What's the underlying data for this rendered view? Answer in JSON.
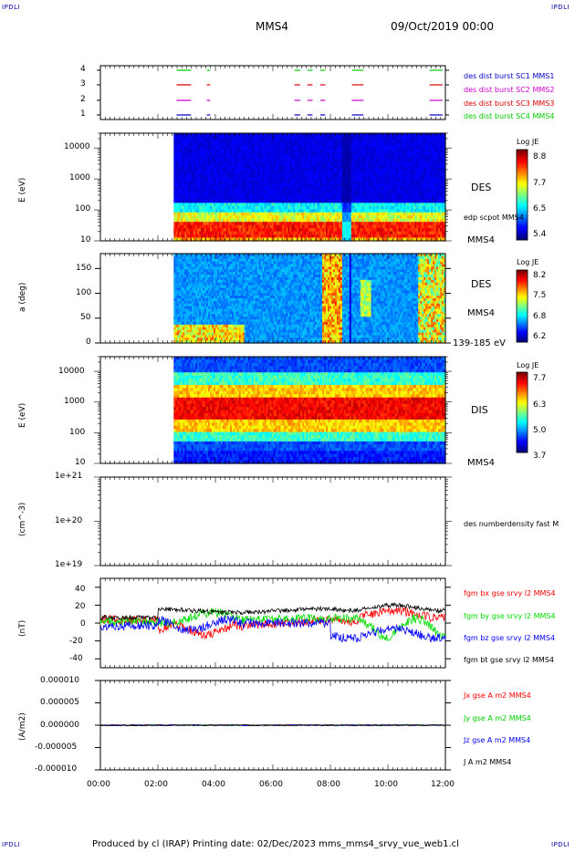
{
  "header": {
    "corner_tl": "IPDLI",
    "corner_tr": "IPDLI",
    "corner_bl": "IPDLI",
    "corner_br": "IPDLI",
    "spacecraft": "MMS4",
    "datetime": "09/Oct/2019 00:00"
  },
  "footer": {
    "text": "Produced by cl (IRAP)   Printing date: 02/Dec/2023   mms_mms4_srvy_vue_web1.cl"
  },
  "colors": {
    "mms1": "#0000cc",
    "mms2": "#cc00cc",
    "mms3": "#dd0000",
    "mms4": "#00cc00",
    "bx": "#ff0000",
    "by": "#00dd00",
    "bz": "#0000ff",
    "bt": "#000000"
  },
  "chart_data": [
    {
      "type": "timeline",
      "id": "burst",
      "x_unit": "hours",
      "xlim": [
        0,
        12
      ],
      "ytick_labels": [
        "1",
        "2",
        "3",
        "4"
      ],
      "legend": [
        {
          "label": "des dist burst SC1 MMS1",
          "color": "#0000cc"
        },
        {
          "label": "des dist burst SC2 MMS2",
          "color": "#cc00cc"
        },
        {
          "label": "des dist burst SC3 MMS3",
          "color": "#dd0000"
        },
        {
          "label": "des dist burst SC4 MMS4",
          "color": "#00cc00"
        }
      ],
      "intervals": [
        [
          2.65,
          3.15
        ],
        [
          3.7,
          3.82
        ],
        [
          6.75,
          6.95
        ],
        [
          7.2,
          7.38
        ],
        [
          7.65,
          7.82
        ],
        [
          8.75,
          9.15
        ],
        [
          11.45,
          11.9
        ]
      ]
    },
    {
      "type": "heatmap",
      "id": "des_energy",
      "ylabel": "E (eV)",
      "yscale": "log",
      "ylim": [
        10,
        30000
      ],
      "ytick_labels": [
        "10",
        "100",
        "1000",
        "10000"
      ],
      "data_start_hour": 2.55,
      "right_labels": [
        "DES",
        "edp scpot MMS4",
        "MMS4"
      ],
      "colorbar": {
        "title": "Log JE",
        "ticks": [
          "8.8",
          "7.7",
          "6.5",
          "5.4"
        ]
      }
    },
    {
      "type": "heatmap",
      "id": "des_pitch",
      "ylabel": "a (deg)",
      "ylim": [
        0,
        180
      ],
      "ytick_labels": [
        "0",
        "50",
        "100",
        "150"
      ],
      "data_start_hour": 2.55,
      "right_labels": [
        "DES",
        "MMS4",
        "139-185 eV"
      ],
      "colorbar": {
        "title": "Log JE",
        "ticks": [
          "8.2",
          "7.5",
          "6.8",
          "6.2"
        ]
      }
    },
    {
      "type": "heatmap",
      "id": "dis_energy",
      "ylabel": "E (eV)",
      "yscale": "log",
      "ylim": [
        10,
        30000
      ],
      "ytick_labels": [
        "10",
        "100",
        "1000",
        "10000"
      ],
      "data_start_hour": 2.55,
      "right_labels": [
        "DIS",
        "MMS4"
      ],
      "colorbar": {
        "title": "Log JE",
        "ticks": [
          "7.7",
          "6.3",
          "5.0",
          "3.7"
        ]
      }
    },
    {
      "type": "line",
      "id": "density",
      "ylabel": "(cm^-3)",
      "yscale": "log",
      "ylim": [
        1e+19,
        1e+21
      ],
      "ytick_labels": [
        "1e+19",
        "1e+20",
        "1e+21"
      ],
      "right_labels": [
        "des numberdensity fast M"
      ],
      "series": []
    },
    {
      "type": "line",
      "id": "bfield",
      "ylabel": "(nT)",
      "ylim": [
        -50,
        50
      ],
      "ytick_labels": [
        "-40",
        "-20",
        "0",
        "20",
        "40"
      ],
      "series": [
        {
          "name": "fgm bx gse srvy l2 MMS4",
          "color": "#ff0000"
        },
        {
          "name": "fgm by gse srvy l2 MMS4",
          "color": "#00dd00"
        },
        {
          "name": "fgm bz gse srvy l2 MMS4",
          "color": "#0000ff"
        },
        {
          "name": "fgm bt gse srvy l2 MMS4",
          "color": "#000000"
        }
      ]
    },
    {
      "type": "line",
      "id": "current",
      "ylabel": "(A/m2)",
      "ylim": [
        -1e-05,
        1e-05
      ],
      "ytick_labels": [
        "-0.000010",
        "-0.000005",
        "0.000000",
        "0.000005",
        "0.000010"
      ],
      "series": [
        {
          "name": "Jx gse A m2 MMS4",
          "color": "#ff0000"
        },
        {
          "name": "Jy gse A m2 MMS4",
          "color": "#00cc00"
        },
        {
          "name": "Jz gse A m2 MMS4",
          "color": "#0000ff"
        },
        {
          "name": "J A m2 MMS4",
          "color": "#000000"
        }
      ]
    }
  ],
  "xaxis": {
    "tick_labels": [
      "00:00",
      "02:00",
      "04:00",
      "06:00",
      "08:00",
      "10:00",
      "12:00"
    ]
  }
}
